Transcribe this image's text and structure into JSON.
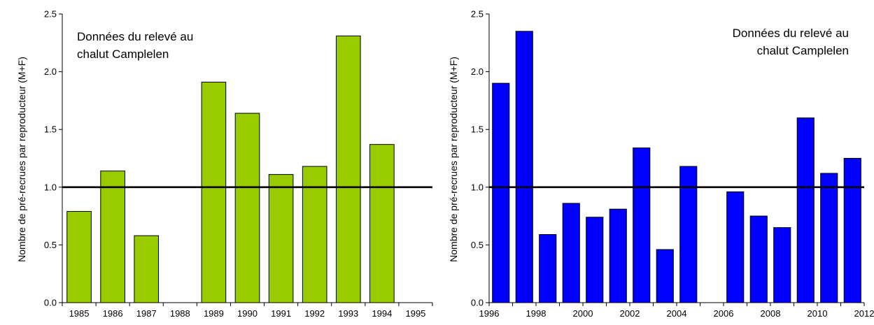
{
  "chart_data": [
    {
      "type": "bar",
      "ylabel": "Nombre de pré-recrues par reproducteur (M+F)",
      "annotation": [
        "Données du relevé au",
        "chalut Camplelen"
      ],
      "categories": [
        "1985",
        "1986",
        "1987",
        "1988",
        "1989",
        "1990",
        "1991",
        "1992",
        "1993",
        "1994",
        "1995"
      ],
      "category_labels": [
        "1985",
        "1986",
        "1987",
        "1988",
        "1989",
        "1990",
        "1991",
        "1992",
        "1993",
        "1994",
        "1995"
      ],
      "values": [
        0.79,
        1.14,
        0.58,
        null,
        1.91,
        1.64,
        1.11,
        1.18,
        2.31,
        1.37,
        null
      ],
      "ylim": [
        0,
        2.5
      ],
      "yticks": [
        "0.0",
        "0.5",
        "1.0",
        "1.5",
        "2.0",
        "2.5"
      ],
      "reference_line": 1.0,
      "bar_color": "#99cc00"
    },
    {
      "type": "bar",
      "ylabel": "Nombre de pré-recrues par reproducteur (M+F)",
      "annotation": [
        "Données du relevé au",
        "chalut Camplelen"
      ],
      "categories": [
        "1996",
        "1997",
        "1998",
        "1999",
        "2000",
        "2001",
        "2002",
        "2003",
        "2004",
        "2005",
        "2006",
        "2007",
        "2008",
        "2009",
        "2010",
        "2011"
      ],
      "category_labels": [
        "1996",
        "1998",
        "2000",
        "2002",
        "2004",
        "2006",
        "2008",
        "2010",
        "2012"
      ],
      "values": [
        1.9,
        2.35,
        0.59,
        0.86,
        0.74,
        0.81,
        1.34,
        0.46,
        1.18,
        null,
        0.96,
        0.75,
        0.65,
        1.6,
        1.12,
        1.25
      ],
      "ylim": [
        0,
        2.5
      ],
      "yticks": [
        "0.0",
        "0.5",
        "1.0",
        "1.5",
        "2.0",
        "2.5"
      ],
      "reference_line": 1.0,
      "bar_color": "#0000ff"
    }
  ]
}
